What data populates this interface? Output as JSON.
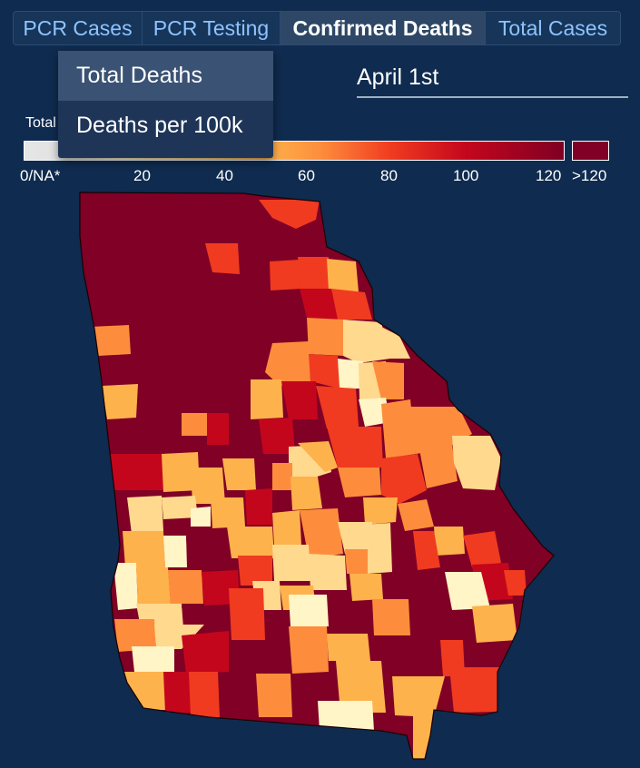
{
  "tabs": [
    {
      "label": "PCR Cases",
      "active": false
    },
    {
      "label": "PCR Testing",
      "active": false
    },
    {
      "label": "Confirmed Deaths",
      "active": true
    },
    {
      "label": "Total Cases",
      "active": false
    }
  ],
  "date": "April 1st",
  "legend": {
    "title": "Total",
    "ticks": [
      "0/NA*",
      "20",
      "40",
      "60",
      "80",
      "100",
      "120"
    ],
    "overflow_label": ">120",
    "colors": [
      "#e0e0e0",
      "#fff5c6",
      "#fed98e",
      "#feb24c",
      "#fd8d3c",
      "#f03b20",
      "#c4061d",
      "#800026"
    ]
  },
  "dropdown": {
    "items": [
      {
        "label": "Total Deaths",
        "selected": true
      },
      {
        "label": "Deaths per 100k",
        "selected": false
      }
    ]
  },
  "map": {
    "region": "Georgia counties",
    "colors": {
      "darkest": "#800026",
      "dark_red": "#c4061d",
      "red": "#f03b20",
      "orange": "#fd8d3c",
      "light_orange": "#feb24c",
      "pale": "#fed98e",
      "lightest": "#fff5c6",
      "border": "#1a0000",
      "background": "#0f2b4f"
    }
  }
}
